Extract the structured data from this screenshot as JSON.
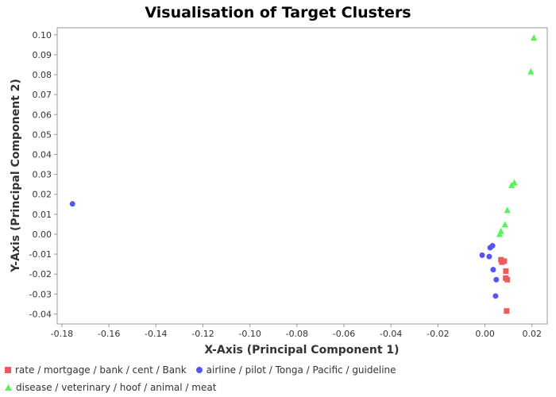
{
  "chart_data": {
    "type": "scatter",
    "title": "Visualisation of Target Clusters",
    "xlabel": "X-Axis (Principal Component 1)",
    "ylabel": "Y-Axis (Principal Component 2)",
    "xlim": [
      -0.182,
      0.0265
    ],
    "ylim": [
      -0.045,
      0.1035
    ],
    "x_ticks": [
      "-0.18",
      "-0.16",
      "-0.14",
      "-0.12",
      "-0.10",
      "-0.08",
      "-0.06",
      "-0.04",
      "-0.02",
      "0.00",
      "0.02"
    ],
    "y_ticks": [
      "-0.04",
      "-0.03",
      "-0.02",
      "-0.01",
      "0.00",
      "0.01",
      "0.02",
      "0.03",
      "0.04",
      "0.05",
      "0.06",
      "0.07",
      "0.08",
      "0.09",
      "0.10"
    ],
    "grid": false,
    "legend_position": "bottom",
    "series": [
      {
        "name": "rate / mortgage / bank / cent / Bank",
        "marker": "square",
        "color": "#f25a5a",
        "points": [
          {
            "x": 0.0068,
            "y": -0.0128
          },
          {
            "x": 0.0072,
            "y": -0.014
          },
          {
            "x": 0.0082,
            "y": -0.0135
          },
          {
            "x": 0.0089,
            "y": -0.0185
          },
          {
            "x": 0.0088,
            "y": -0.022
          },
          {
            "x": 0.0095,
            "y": -0.0228
          },
          {
            "x": 0.0092,
            "y": -0.0385
          }
        ]
      },
      {
        "name": "airline / pilot / Tonga / Pacific / guideline",
        "marker": "circle",
        "color": "#5555f5",
        "points": [
          {
            "x": -0.1755,
            "y": 0.0152
          },
          {
            "x": -0.0012,
            "y": -0.0105
          },
          {
            "x": 0.0018,
            "y": -0.0112
          },
          {
            "x": 0.0022,
            "y": -0.0068
          },
          {
            "x": 0.0032,
            "y": -0.0058
          },
          {
            "x": 0.0035,
            "y": -0.0178
          },
          {
            "x": 0.0048,
            "y": -0.0228
          },
          {
            "x": 0.0045,
            "y": -0.031
          }
        ]
      },
      {
        "name": "disease / veterinary / hoof / animal / meat",
        "marker": "triangle",
        "color": "#55f555",
        "points": [
          {
            "x": 0.0208,
            "y": 0.0985
          },
          {
            "x": 0.0195,
            "y": 0.0815
          },
          {
            "x": 0.0125,
            "y": 0.0258
          },
          {
            "x": 0.0113,
            "y": 0.0245
          },
          {
            "x": 0.0095,
            "y": 0.012
          },
          {
            "x": 0.0085,
            "y": 0.0048
          },
          {
            "x": 0.0068,
            "y": 0.0015
          },
          {
            "x": 0.0062,
            "y": 0.0
          }
        ]
      }
    ]
  }
}
